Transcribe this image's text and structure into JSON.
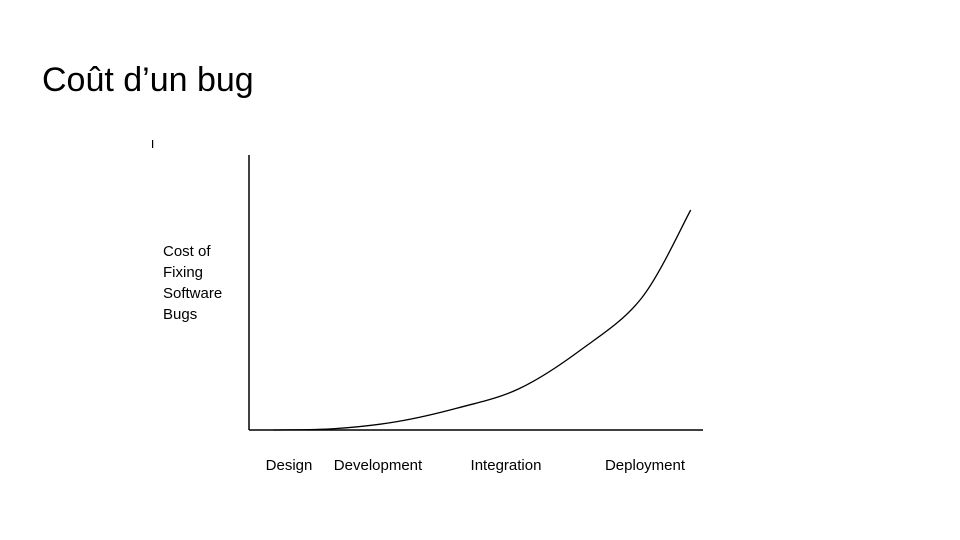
{
  "slide": {
    "title": "Coût d’un bug"
  },
  "chart_data": {
    "type": "line",
    "title": "",
    "ylabel_lines": [
      "Cost of",
      "Fixing",
      "Software",
      "Bugs"
    ],
    "xlabel": "",
    "categories": [
      "Design",
      "Development",
      "Integration",
      "Deployment"
    ],
    "series": [
      {
        "x": [
          0,
          0.5,
          1.0,
          1.5,
          2.0,
          2.5,
          3.0,
          3.4
        ],
        "values": [
          0,
          0.005,
          0.03,
          0.08,
          0.15,
          0.29,
          0.48,
          0.8
        ]
      }
    ],
    "xlim": [
      -0.2,
      3.5
    ],
    "ylim": [
      0,
      1
    ],
    "grid": false,
    "line_color": "#000000"
  }
}
